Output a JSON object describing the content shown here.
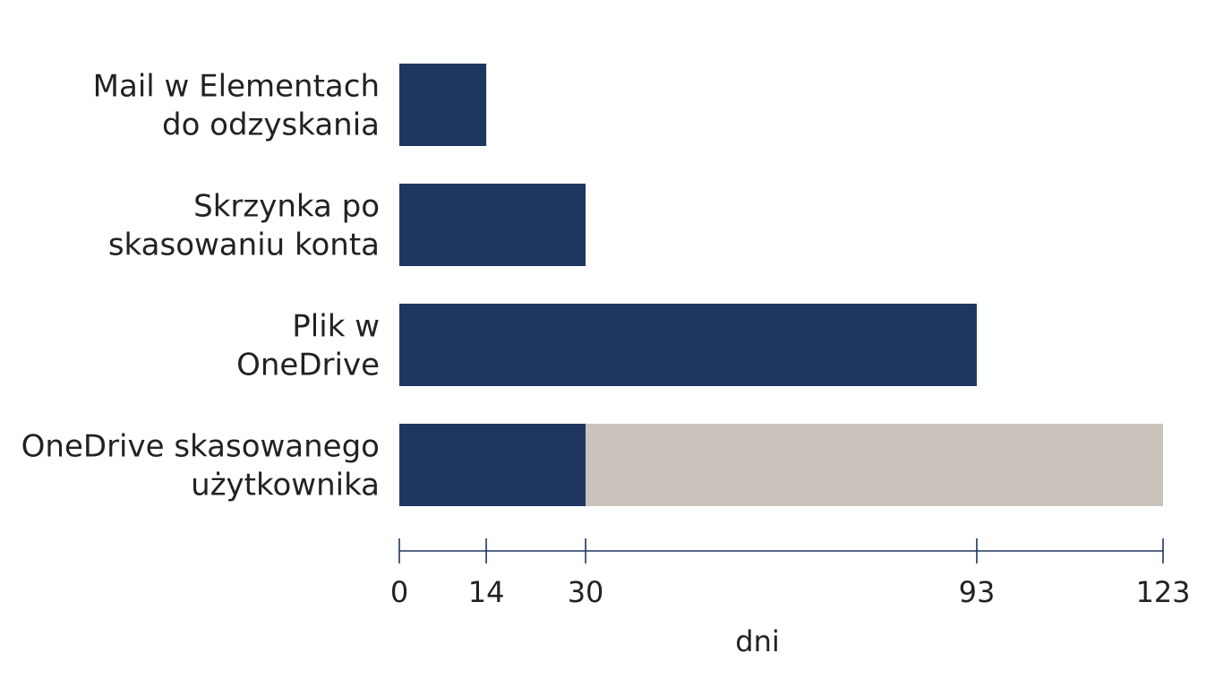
{
  "chart_data": {
    "type": "bar",
    "orientation": "horizontal",
    "stacked": true,
    "categories": [
      [
        "Mail w Elementach",
        "do odzyskania"
      ],
      [
        "Skrzynka po",
        "skasowaniu konta"
      ],
      [
        "Plik w",
        "OneDrive"
      ],
      [
        "OneDrive skasowanego",
        "użytkownika"
      ]
    ],
    "series": [
      {
        "values": [
          14,
          30,
          93,
          30
        ],
        "color": "#1f3661"
      },
      {
        "values": [
          0,
          0,
          0,
          93
        ],
        "color": "#c9c3bb"
      }
    ],
    "xlabel": "dni",
    "xticks": [
      0,
      14,
      30,
      93,
      123
    ],
    "xlim": [
      0,
      123
    ],
    "axis_color": "#1f3661",
    "grid": false,
    "legend": "none"
  }
}
